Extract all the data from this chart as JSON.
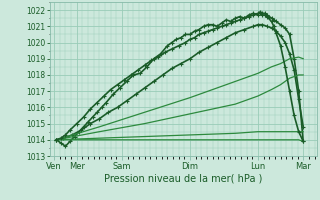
{
  "xlabel": "Pression niveau de la mer( hPa )",
  "bg_color": "#cce8dc",
  "grid_color": "#99ccb8",
  "ylim": [
    1013,
    1022.5
  ],
  "yticks": [
    1013,
    1014,
    1015,
    1016,
    1017,
    1018,
    1019,
    1020,
    1021,
    1022
  ],
  "day_labels": [
    "Ven",
    "Mer",
    "Sam",
    "Dim",
    "Lun",
    "Mar"
  ],
  "day_positions": [
    0.0,
    0.5,
    1.5,
    3.0,
    4.5,
    5.5
  ],
  "xlim": [
    -0.1,
    5.8
  ],
  "lines": [
    {
      "x": [
        0.05,
        0.15,
        0.25,
        0.35,
        0.45,
        0.55,
        0.65,
        0.75,
        0.85,
        0.95,
        1.05,
        1.15,
        1.3,
        1.45,
        1.6,
        1.75,
        1.9,
        2.05,
        2.2,
        2.35,
        2.5,
        2.6,
        2.7,
        2.8,
        2.9,
        3.0,
        3.1,
        3.2,
        3.3,
        3.4,
        3.5,
        3.6,
        3.7,
        3.8,
        3.9,
        4.0,
        4.1,
        4.2,
        4.3,
        4.4,
        4.5,
        4.55,
        4.6,
        4.65,
        4.7,
        4.75,
        4.8,
        4.85,
        4.9,
        5.0,
        5.1,
        5.2,
        5.3,
        5.4,
        5.5
      ],
      "y": [
        1014.0,
        1013.8,
        1013.6,
        1013.9,
        1014.2,
        1014.5,
        1014.8,
        1015.1,
        1015.4,
        1015.7,
        1016.0,
        1016.3,
        1016.8,
        1017.2,
        1017.6,
        1018.0,
        1018.1,
        1018.5,
        1019.0,
        1019.3,
        1019.8,
        1020.0,
        1020.2,
        1020.3,
        1020.5,
        1020.5,
        1020.7,
        1020.8,
        1021.0,
        1021.1,
        1021.1,
        1021.0,
        1021.2,
        1021.4,
        1021.3,
        1021.5,
        1021.6,
        1021.5,
        1021.7,
        1021.8,
        1021.7,
        1021.9,
        1021.8,
        1021.8,
        1021.7,
        1021.6,
        1021.5,
        1021.4,
        1021.3,
        1021.1,
        1020.9,
        1020.5,
        1019.0,
        1017.0,
        1013.9
      ],
      "marker": "+",
      "lw": 1.2,
      "ms": 3,
      "color": "#1a5c28"
    },
    {
      "x": [
        0.05,
        0.2,
        0.4,
        0.6,
        0.8,
        1.0,
        1.2,
        1.4,
        1.6,
        1.8,
        2.0,
        2.2,
        2.4,
        2.6,
        2.8,
        3.0,
        3.2,
        3.4,
        3.6,
        3.8,
        4.0,
        4.2,
        4.4,
        4.5,
        4.6,
        4.7,
        4.8,
        4.9,
        5.0,
        5.1,
        5.2,
        5.3,
        5.4,
        5.5
      ],
      "y": [
        1014.0,
        1014.1,
        1014.3,
        1014.6,
        1015.0,
        1015.3,
        1015.7,
        1016.0,
        1016.4,
        1016.8,
        1017.2,
        1017.6,
        1018.0,
        1018.4,
        1018.7,
        1019.0,
        1019.4,
        1019.7,
        1020.0,
        1020.3,
        1020.6,
        1020.8,
        1021.0,
        1021.1,
        1021.1,
        1021.0,
        1020.9,
        1020.7,
        1020.4,
        1020.0,
        1019.3,
        1018.3,
        1016.5,
        1014.8
      ],
      "marker": "+",
      "lw": 1.2,
      "ms": 3,
      "color": "#1a5c28"
    },
    {
      "x": [
        0.05,
        1.0,
        2.0,
        3.0,
        4.0,
        4.5,
        4.8,
        5.0,
        5.2,
        5.4,
        5.5
      ],
      "y": [
        1014.0,
        1014.8,
        1015.7,
        1016.6,
        1017.6,
        1018.1,
        1018.5,
        1018.7,
        1019.0,
        1019.1,
        1019.0
      ],
      "marker": null,
      "lw": 0.9,
      "ms": 0,
      "color": "#2d8a3e"
    },
    {
      "x": [
        0.05,
        1.0,
        2.0,
        3.0,
        4.0,
        4.5,
        4.8,
        5.0,
        5.2,
        5.4,
        5.5
      ],
      "y": [
        1014.0,
        1014.5,
        1015.0,
        1015.6,
        1016.2,
        1016.7,
        1017.1,
        1017.4,
        1017.8,
        1018.0,
        1018.0
      ],
      "marker": null,
      "lw": 0.9,
      "ms": 0,
      "color": "#2d8a3e"
    },
    {
      "x": [
        0.05,
        1.0,
        2.0,
        3.0,
        4.0,
        4.5,
        5.0,
        5.2,
        5.4,
        5.5
      ],
      "y": [
        1014.0,
        1014.1,
        1014.2,
        1014.3,
        1014.4,
        1014.5,
        1014.5,
        1014.5,
        1014.5,
        1014.5
      ],
      "marker": null,
      "lw": 0.9,
      "ms": 0,
      "color": "#2d8a3e"
    },
    {
      "x": [
        0.05,
        0.5,
        1.0,
        1.5,
        2.0,
        2.5,
        3.0,
        3.5,
        4.0,
        4.5,
        5.0,
        5.2,
        5.4,
        5.5
      ],
      "y": [
        1014.0,
        1014.0,
        1014.0,
        1014.0,
        1014.0,
        1014.0,
        1014.0,
        1014.0,
        1014.0,
        1014.0,
        1014.0,
        1014.0,
        1014.0,
        1013.9
      ],
      "marker": null,
      "lw": 0.9,
      "ms": 0,
      "color": "#2d8a3e"
    },
    {
      "x": [
        0.05,
        0.15,
        0.25,
        0.35,
        0.5,
        0.65,
        0.8,
        0.95,
        1.1,
        1.25,
        1.4,
        1.55,
        1.7,
        1.85,
        2.0,
        2.15,
        2.3,
        2.45,
        2.6,
        2.75,
        2.9,
        3.0,
        3.1,
        3.2,
        3.3,
        3.4,
        3.5,
        3.6,
        3.7,
        3.8,
        3.9,
        4.0,
        4.1,
        4.2,
        4.3,
        4.4,
        4.5,
        4.55,
        4.6,
        4.65,
        4.7,
        4.8,
        4.85,
        4.9,
        5.0,
        5.1,
        5.2,
        5.3,
        5.4,
        5.5
      ],
      "y": [
        1014.0,
        1014.1,
        1014.3,
        1014.6,
        1015.0,
        1015.4,
        1015.9,
        1016.3,
        1016.7,
        1017.1,
        1017.4,
        1017.7,
        1018.0,
        1018.3,
        1018.6,
        1018.9,
        1019.1,
        1019.4,
        1019.6,
        1019.8,
        1020.0,
        1020.2,
        1020.3,
        1020.5,
        1020.6,
        1020.7,
        1020.8,
        1020.9,
        1021.0,
        1021.1,
        1021.2,
        1021.3,
        1021.4,
        1021.5,
        1021.6,
        1021.7,
        1021.8,
        1021.8,
        1021.7,
        1021.7,
        1021.6,
        1021.3,
        1021.0,
        1020.6,
        1019.8,
        1018.5,
        1017.0,
        1015.5,
        1014.5,
        1013.9
      ],
      "marker": "+",
      "lw": 1.2,
      "ms": 3,
      "color": "#1a5c28"
    }
  ]
}
